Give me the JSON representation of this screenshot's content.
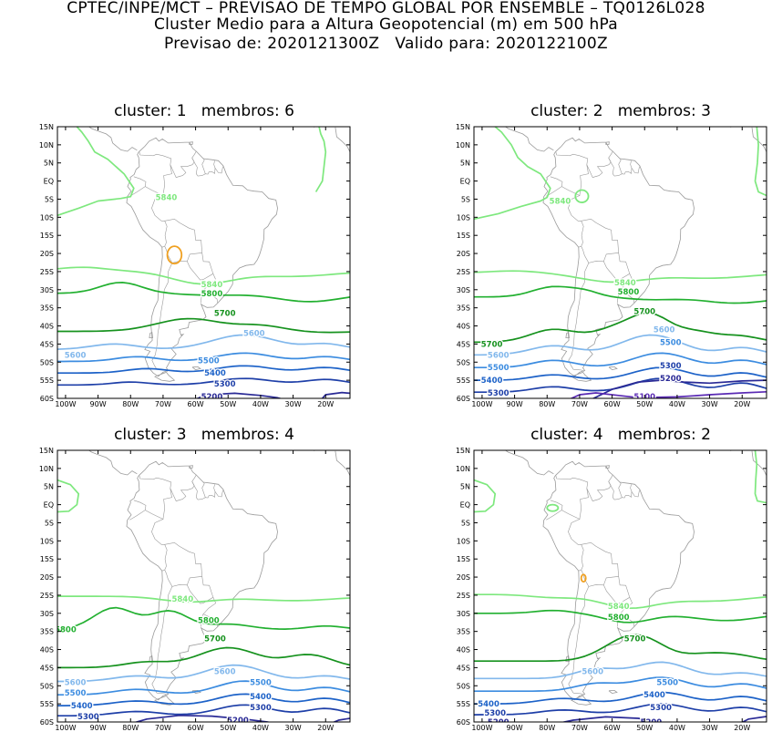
{
  "header": {
    "line1": "CPTEC/INPE/MCT – PREVISAO DE TEMPO GLOBAL POR ENSEMBLE – TQ0126L028",
    "line2": "Cluster Medio para a Altura Geopotencial (m) em 500 hPa",
    "line3": "Previsao de: 2020121300Z   Valido para: 2020122100Z"
  },
  "axes": {
    "lat_labels": [
      "15N",
      "10N",
      "5N",
      "EQ",
      "5S",
      "10S",
      "15S",
      "20S",
      "25S",
      "30S",
      "35S",
      "40S",
      "45S",
      "50S",
      "55S",
      "60S"
    ],
    "lon_labels": [
      "100W",
      "90W",
      "80W",
      "70W",
      "60W",
      "50W",
      "40W",
      "30W",
      "20W"
    ]
  },
  "colors": {
    "c5840": "#7ee87e",
    "c5800": "#22b030",
    "c5700": "#16921e",
    "c5600": "#82b8ec",
    "c5500": "#3c8ce0",
    "c5400": "#1d62c8",
    "c5300": "#1e3fa8",
    "c5200": "#2a2a96",
    "c5100": "#5a2ab4",
    "c5880": "#f0a020",
    "coast": "#9a9a9a"
  },
  "panels": [
    {
      "title": "cluster: 1   membros: 6",
      "labels": [
        {
          "text": "5840",
          "lon": -69,
          "lat": -4.5,
          "color": "#7ee87e"
        },
        {
          "text": "5840",
          "lon": -55,
          "lat": -28.5,
          "color": "#7ee87e"
        },
        {
          "text": "5800",
          "lon": -55,
          "lat": -31,
          "color": "#22b030"
        },
        {
          "text": "5700",
          "lon": -51,
          "lat": -36.5,
          "color": "#16921e"
        },
        {
          "text": "5600",
          "lon": -42,
          "lat": -42,
          "color": "#82b8ec"
        },
        {
          "text": "5600",
          "lon": -97,
          "lat": -48,
          "color": "#82b8ec"
        },
        {
          "text": "5500",
          "lon": -56,
          "lat": -49.5,
          "color": "#3c8ce0"
        },
        {
          "text": "5400",
          "lon": -54,
          "lat": -53,
          "color": "#1d62c8"
        },
        {
          "text": "5300",
          "lon": -51,
          "lat": -56,
          "color": "#1e3fa8"
        },
        {
          "text": "5200",
          "lon": -55,
          "lat": -59.5,
          "color": "#2a2a96"
        }
      ]
    },
    {
      "title": "cluster: 2   membros: 3",
      "labels": [
        {
          "text": "5840",
          "lon": -76,
          "lat": -5.5,
          "color": "#7ee87e"
        },
        {
          "text": "5840",
          "lon": -56,
          "lat": -28,
          "color": "#7ee87e"
        },
        {
          "text": "5800",
          "lon": -55,
          "lat": -30.5,
          "color": "#22b030"
        },
        {
          "text": "5700",
          "lon": -50,
          "lat": -36,
          "color": "#16921e"
        },
        {
          "text": "5700",
          "lon": -97,
          "lat": -45,
          "color": "#16921e"
        },
        {
          "text": "5600",
          "lon": -44,
          "lat": -41,
          "color": "#82b8ec"
        },
        {
          "text": "5600",
          "lon": -95,
          "lat": -48,
          "color": "#82b8ec"
        },
        {
          "text": "5500",
          "lon": -42,
          "lat": -44.5,
          "color": "#3c8ce0"
        },
        {
          "text": "5500",
          "lon": -95,
          "lat": -51.5,
          "color": "#3c8ce0"
        },
        {
          "text": "5400",
          "lon": -97,
          "lat": -55,
          "color": "#1d62c8"
        },
        {
          "text": "5300",
          "lon": -42,
          "lat": -51,
          "color": "#1e3fa8"
        },
        {
          "text": "5300",
          "lon": -95,
          "lat": -58.5,
          "color": "#1e3fa8"
        },
        {
          "text": "5200",
          "lon": -42,
          "lat": -54.5,
          "color": "#2a2a96"
        },
        {
          "text": "5100",
          "lon": -50,
          "lat": -59.5,
          "color": "#5a2ab4"
        }
      ]
    },
    {
      "title": "cluster: 3   membros: 4",
      "labels": [
        {
          "text": "5840",
          "lon": -64,
          "lat": -26,
          "color": "#7ee87e"
        },
        {
          "text": "5800",
          "lon": -56,
          "lat": -32,
          "color": "#22b030"
        },
        {
          "text": "5800",
          "lon": -100,
          "lat": -34.5,
          "color": "#22b030"
        },
        {
          "text": "5700",
          "lon": -54,
          "lat": -37,
          "color": "#16921e"
        },
        {
          "text": "5600",
          "lon": -51,
          "lat": -46,
          "color": "#82b8ec"
        },
        {
          "text": "5600",
          "lon": -97,
          "lat": -49,
          "color": "#82b8ec"
        },
        {
          "text": "5500",
          "lon": -40,
          "lat": -49,
          "color": "#3c8ce0"
        },
        {
          "text": "5500",
          "lon": -97,
          "lat": -52,
          "color": "#3c8ce0"
        },
        {
          "text": "5400",
          "lon": -40,
          "lat": -53,
          "color": "#1d62c8"
        },
        {
          "text": "5400",
          "lon": -95,
          "lat": -55.5,
          "color": "#1d62c8"
        },
        {
          "text": "5300",
          "lon": -40,
          "lat": -56,
          "color": "#1e3fa8"
        },
        {
          "text": "5300",
          "lon": -93,
          "lat": -58.5,
          "color": "#1e3fa8"
        },
        {
          "text": "5200",
          "lon": -47,
          "lat": -59.5,
          "color": "#2a2a96"
        }
      ]
    },
    {
      "title": "cluster: 4   membros: 2",
      "labels": [
        {
          "text": "5840",
          "lon": -58,
          "lat": -28,
          "color": "#7ee87e"
        },
        {
          "text": "5800",
          "lon": -58,
          "lat": -31,
          "color": "#22b030"
        },
        {
          "text": "5700",
          "lon": -53,
          "lat": -37,
          "color": "#16921e"
        },
        {
          "text": "5600",
          "lon": -66,
          "lat": -46,
          "color": "#82b8ec"
        },
        {
          "text": "5500",
          "lon": -43,
          "lat": -49,
          "color": "#3c8ce0"
        },
        {
          "text": "5400",
          "lon": -47,
          "lat": -52.5,
          "color": "#1d62c8"
        },
        {
          "text": "5400",
          "lon": -98,
          "lat": -55,
          "color": "#1d62c8"
        },
        {
          "text": "5300",
          "lon": -45,
          "lat": -56,
          "color": "#1e3fa8"
        },
        {
          "text": "5300",
          "lon": -96,
          "lat": -57.5,
          "color": "#1e3fa8"
        },
        {
          "text": "5200",
          "lon": -95,
          "lat": -60,
          "color": "#2a2a96"
        },
        {
          "text": "5200",
          "lon": -48,
          "lat": -60,
          "color": "#2a2a96"
        }
      ]
    }
  ]
}
